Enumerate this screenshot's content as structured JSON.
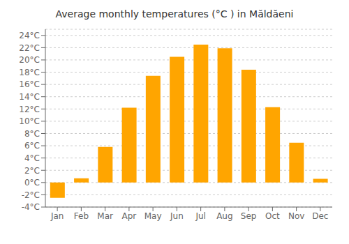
{
  "chart_data": {
    "type": "bar",
    "title": "Average monthly temperatures (°C ) in Măldăeni",
    "categories": [
      "Jan",
      "Feb",
      "Mar",
      "Apr",
      "May",
      "Jun",
      "Jul",
      "Aug",
      "Sep",
      "Oct",
      "Nov",
      "Dec"
    ],
    "values": [
      -2.5,
      0.7,
      5.8,
      12.2,
      17.4,
      20.5,
      22.5,
      21.9,
      18.4,
      12.3,
      6.5,
      0.6
    ],
    "color": "#FFA500",
    "ylim": [
      -4,
      25
    ],
    "yticks": [
      {
        "value": -4,
        "label": "-4°C"
      },
      {
        "value": -2,
        "label": "-2°C"
      },
      {
        "value": 0,
        "label": "0°C"
      },
      {
        "value": 2,
        "label": "2°C"
      },
      {
        "value": 4,
        "label": "4°C"
      },
      {
        "value": 6,
        "label": "6°C"
      },
      {
        "value": 8,
        "label": "8°C"
      },
      {
        "value": 10,
        "label": "10°C"
      },
      {
        "value": 12,
        "label": "12°C"
      },
      {
        "value": 14,
        "label": "14°C"
      },
      {
        "value": 16,
        "label": "16°C"
      },
      {
        "value": 18,
        "label": "18°C"
      },
      {
        "value": 20,
        "label": "20°C"
      },
      {
        "value": 22,
        "label": "22°C"
      },
      {
        "value": 24,
        "label": "24°C"
      }
    ],
    "grid": true
  }
}
